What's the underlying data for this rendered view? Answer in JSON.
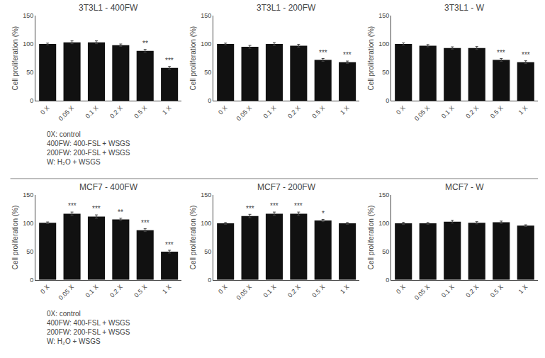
{
  "chart_data": [
    {
      "type": "bar",
      "title": "3T3L1 - 400FW",
      "categories": [
        "0 X",
        "0.05 X",
        "0.1 X",
        "0.2 X",
        "0.5 X",
        "1 X"
      ],
      "values": [
        100,
        103,
        103,
        98,
        88,
        58
      ],
      "errors": [
        1.5,
        2.5,
        2.5,
        2.0,
        2.5,
        2.5
      ],
      "annotations": [
        {
          "x": "0.5 X",
          "y": 91,
          "text": "**"
        },
        {
          "x": "1 X",
          "y": 61,
          "text": "***"
        }
      ],
      "ylabel": "Cell proliferation (%)",
      "color": "#111111",
      "ylim": [
        0,
        150
      ],
      "yticks": [
        0,
        50,
        100,
        150
      ],
      "grid": false
    },
    {
      "type": "bar",
      "title": "3T3L1 - 200FW",
      "categories": [
        "0 X",
        "0.05 X",
        "0.1 X",
        "0.2 X",
        "0.5 X",
        "1 X"
      ],
      "values": [
        100,
        95,
        100,
        97,
        72,
        68
      ],
      "errors": [
        1.5,
        2.5,
        2.5,
        2.5,
        2.5,
        2.0
      ],
      "annotations": [
        {
          "x": "0.5 X",
          "y": 75,
          "text": "***"
        },
        {
          "x": "1 X",
          "y": 71,
          "text": "***"
        }
      ],
      "ylabel": "Cell proliferation (%)",
      "color": "#111111",
      "ylim": [
        0,
        150
      ],
      "yticks": [
        0,
        50,
        100,
        150
      ],
      "grid": false
    },
    {
      "type": "bar",
      "title": "3T3L1 - W",
      "categories": [
        "0 X",
        "0.05 X",
        "0.1 X",
        "0.2 X",
        "0.5 X",
        "1 X"
      ],
      "values": [
        100,
        97,
        93,
        93,
        72,
        68
      ],
      "errors": [
        2.0,
        2.0,
        2.0,
        2.5,
        2.5,
        2.5
      ],
      "annotations": [
        {
          "x": "0.5 X",
          "y": 75,
          "text": "***"
        },
        {
          "x": "1 X",
          "y": 71,
          "text": "***"
        }
      ],
      "ylabel": "Cell proliferation (%)",
      "color": "#111111",
      "ylim": [
        0,
        150
      ],
      "yticks": [
        0,
        50,
        100,
        150
      ],
      "grid": false
    },
    {
      "type": "bar",
      "title": "MCF7 - 400FW",
      "categories": [
        "0 X",
        "0.05 X",
        "0.1 X",
        "0.2 X",
        "0.5 X",
        "1 X"
      ],
      "values": [
        101,
        117,
        112,
        107,
        88,
        50
      ],
      "errors": [
        1.5,
        3.0,
        3.0,
        2.0,
        2.5,
        2.5
      ],
      "annotations": [
        {
          "x": "0.05 X",
          "y": 121,
          "text": "***"
        },
        {
          "x": "0.1 X",
          "y": 116,
          "text": "***"
        },
        {
          "x": "0.2 X",
          "y": 110,
          "text": "**"
        },
        {
          "x": "0.5 X",
          "y": 91,
          "text": "***"
        },
        {
          "x": "1 X",
          "y": 53,
          "text": "***"
        }
      ],
      "ylabel": "Cell proliferation (%)",
      "color": "#111111",
      "ylim": [
        0,
        150
      ],
      "yticks": [
        0,
        50,
        100,
        150
      ],
      "grid": false
    },
    {
      "type": "bar",
      "title": "MCF7 - 200FW",
      "categories": [
        "0 X",
        "0.05 X",
        "0.1 X",
        "0.2 X",
        "0.5 X",
        "1 X"
      ],
      "values": [
        100,
        113,
        117,
        117,
        105,
        100
      ],
      "errors": [
        1.5,
        3.0,
        3.0,
        3.0,
        2.0,
        1.5
      ],
      "annotations": [
        {
          "x": "0.05 X",
          "y": 117,
          "text": "***"
        },
        {
          "x": "0.1 X",
          "y": 121,
          "text": "***"
        },
        {
          "x": "0.2 X",
          "y": 121,
          "text": "***"
        },
        {
          "x": "0.5 X",
          "y": 108,
          "text": "*"
        }
      ],
      "ylabel": "Cell proliferation (%)",
      "color": "#111111",
      "ylim": [
        0,
        150
      ],
      "yticks": [
        0,
        50,
        100,
        150
      ],
      "grid": false
    },
    {
      "type": "bar",
      "title": "MCF7 - W",
      "categories": [
        "0 X",
        "0.05 X",
        "0.1 X",
        "0.2 X",
        "0.5 X",
        "1 X"
      ],
      "values": [
        100,
        100,
        103,
        101,
        102,
        96
      ],
      "errors": [
        2.0,
        1.5,
        2.5,
        2.0,
        2.0,
        1.5
      ],
      "annotations": [],
      "ylabel": "Cell proliferation (%)",
      "color": "#111111",
      "ylim": [
        0,
        150
      ],
      "yticks": [
        0,
        50,
        100,
        150
      ],
      "grid": false
    }
  ],
  "annotations": [
    "0X: control",
    "400FW: 400-FSL + WSGS",
    "200FW: 200-FSL + WSGS",
    "W: H₂O + WSGS"
  ]
}
